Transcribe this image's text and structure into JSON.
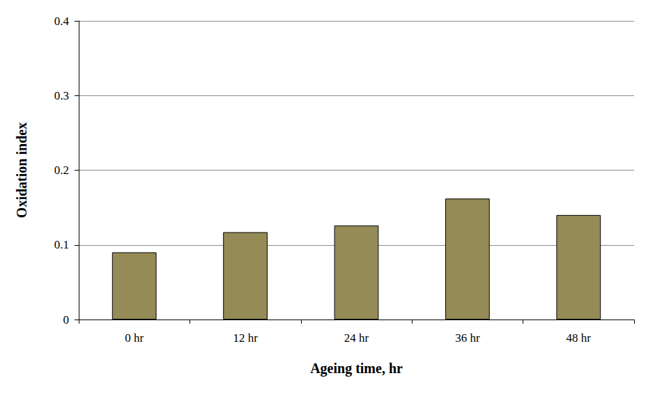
{
  "chart_data": {
    "type": "bar",
    "xlabel": "Ageing time, hr",
    "ylabel": "Oxidation index",
    "categories": [
      "0 hr",
      "12 hr",
      "24 hr",
      "36 hr",
      "48 hr"
    ],
    "values": [
      0.09,
      0.117,
      0.126,
      0.162,
      0.14
    ],
    "color": "#958b56",
    "ylim": [
      0,
      0.4
    ],
    "yticks": [
      0,
      0.1,
      0.2,
      0.3,
      0.4
    ],
    "grid": true
  }
}
